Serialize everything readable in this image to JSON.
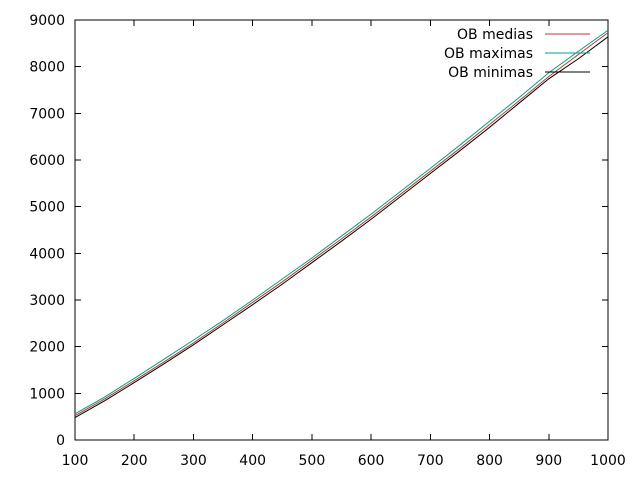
{
  "chart_data": {
    "type": "line",
    "title": "",
    "xlabel": "",
    "ylabel": "",
    "xlim": [
      100,
      1000
    ],
    "ylim": [
      0,
      9000
    ],
    "x_ticks": [
      100,
      200,
      300,
      400,
      500,
      600,
      700,
      800,
      900,
      1000
    ],
    "y_ticks": [
      0,
      1000,
      2000,
      3000,
      4000,
      5000,
      6000,
      7000,
      8000,
      9000
    ],
    "grid": false,
    "legend_position": "top-right",
    "x": [
      100,
      150,
      200,
      250,
      300,
      350,
      400,
      450,
      500,
      550,
      600,
      650,
      700,
      750,
      800,
      850,
      900,
      950,
      1000
    ],
    "series": [
      {
        "name": "OB medias",
        "color": "#c0392b",
        "values": [
          520,
          880,
          1270,
          1670,
          2080,
          2510,
          2950,
          3390,
          3850,
          4310,
          4780,
          5270,
          5760,
          6250,
          6760,
          7270,
          7790,
          8260,
          8730
        ]
      },
      {
        "name": "OB maximas",
        "color": "#009e8e",
        "values": [
          560,
          920,
          1320,
          1730,
          2140,
          2560,
          3000,
          3450,
          3900,
          4370,
          4840,
          5330,
          5820,
          6320,
          6830,
          7340,
          7870,
          8330,
          8780
        ]
      },
      {
        "name": "OB minimas",
        "color": "#000000",
        "values": [
          480,
          840,
          1230,
          1630,
          2040,
          2470,
          2900,
          3340,
          3800,
          4260,
          4730,
          5220,
          5710,
          6200,
          6700,
          7220,
          7740,
          8170,
          8640
        ]
      }
    ]
  }
}
